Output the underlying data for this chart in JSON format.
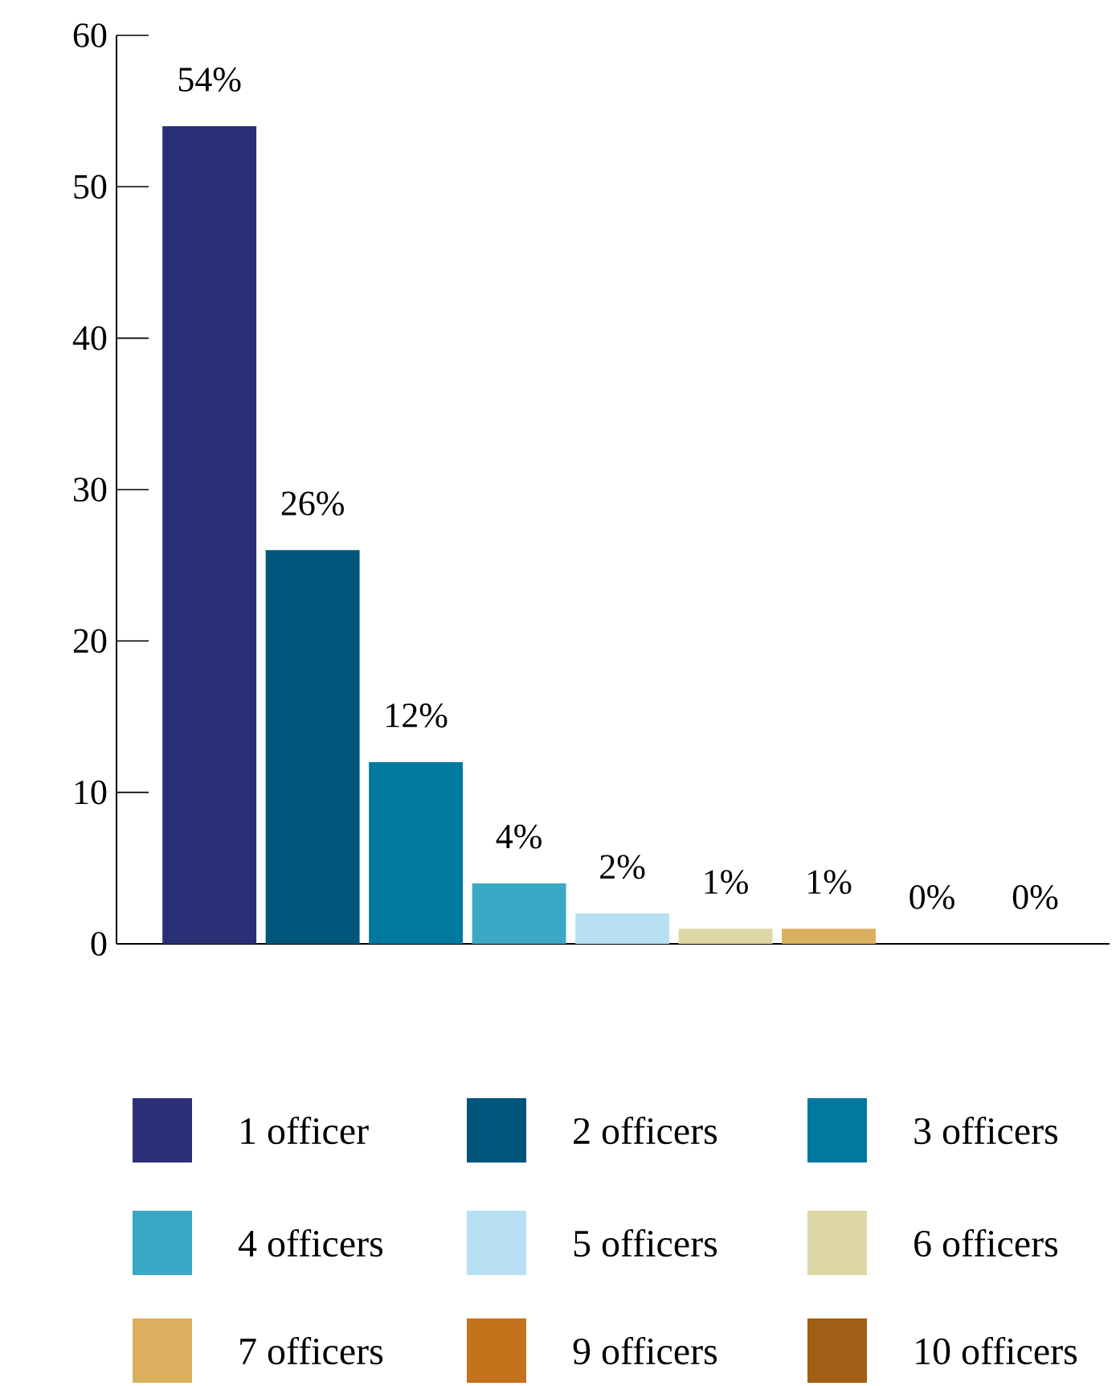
{
  "chart_data": {
    "type": "bar",
    "categories": [
      null,
      null,
      null,
      null,
      null,
      null,
      null,
      null,
      null
    ],
    "series": [
      {
        "name": "1 officer",
        "color": "#2b3076",
        "values": [
          54,
          null,
          null,
          null,
          null,
          null,
          null,
          null,
          null
        ],
        "value_labels": [
          "54%",
          null,
          null,
          null,
          null,
          null,
          null,
          null,
          null
        ]
      },
      {
        "name": "2 officers",
        "color": "#00557b",
        "values": [
          null,
          26,
          null,
          null,
          null,
          null,
          null,
          null,
          null
        ],
        "value_labels": [
          null,
          "26%",
          null,
          null,
          null,
          null,
          null,
          null,
          null
        ]
      },
      {
        "name": "3 officers",
        "color": "#00799f",
        "values": [
          null,
          null,
          12,
          null,
          null,
          null,
          null,
          null,
          null
        ],
        "value_labels": [
          null,
          null,
          "12%",
          null,
          null,
          null,
          null,
          null,
          null
        ]
      },
      {
        "name": "4 officers",
        "color": "#3aa8c4",
        "values": [
          null,
          null,
          null,
          4,
          null,
          null,
          null,
          null,
          null
        ],
        "value_labels": [
          null,
          null,
          null,
          "4%",
          null,
          null,
          null,
          null,
          null
        ]
      },
      {
        "name": "5 officers",
        "color": "#b8e0f5",
        "values": [
          null,
          null,
          null,
          null,
          2,
          null,
          null,
          null,
          null
        ],
        "value_labels": [
          null,
          null,
          null,
          null,
          "2%",
          null,
          null,
          null,
          null
        ]
      },
      {
        "name": "6 officers",
        "color": "#ddd6a5",
        "values": [
          null,
          null,
          null,
          null,
          null,
          1,
          null,
          null,
          null
        ],
        "value_labels": [
          null,
          null,
          null,
          null,
          null,
          "1%",
          null,
          null,
          null
        ]
      },
      {
        "name": "7 officers",
        "color": "#dab05f",
        "values": [
          null,
          null,
          null,
          null,
          null,
          null,
          1,
          null,
          null
        ],
        "value_labels": [
          null,
          null,
          null,
          null,
          null,
          null,
          "1%",
          null,
          null
        ]
      },
      {
        "name": "9 officers",
        "color": "#c5721d",
        "values": [
          null,
          null,
          null,
          null,
          null,
          null,
          null,
          0,
          null
        ],
        "value_labels": [
          null,
          null,
          null,
          null,
          null,
          null,
          null,
          "0%",
          null
        ]
      },
      {
        "name": "10 officers",
        "color": "#a05f14",
        "values": [
          null,
          null,
          null,
          null,
          null,
          null,
          null,
          null,
          0
        ],
        "value_labels": [
          null,
          null,
          null,
          null,
          null,
          null,
          null,
          null,
          "0%"
        ]
      }
    ],
    "ylim": [
      0,
      60
    ],
    "yticks": [
      0,
      10,
      20,
      30,
      40,
      50,
      60
    ],
    "legend": "bottom"
  }
}
